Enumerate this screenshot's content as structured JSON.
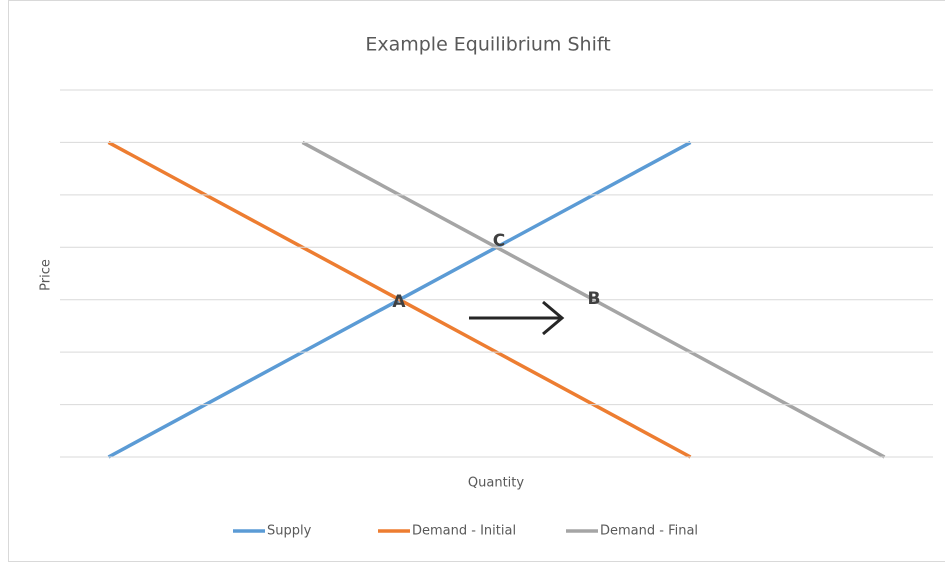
{
  "chart_data": {
    "type": "line",
    "title": "Example Equilibrium Shift",
    "x_label": "Quantity",
    "y_label": "Price",
    "categories": [
      null,
      null,
      null,
      null,
      null,
      null,
      null,
      null,
      null
    ],
    "series": [
      {
        "name": "Supply",
        "color": "#5b9bd5",
        "values": [
          0,
          1,
          2,
          3,
          4,
          5,
          6,
          null,
          null
        ]
      },
      {
        "name": "Demand - Initial",
        "color": "#ed7d31",
        "values": [
          6,
          5,
          4,
          3,
          2,
          1,
          0,
          null,
          null
        ]
      },
      {
        "name": "Demand - Final",
        "color": "#a5a5a5",
        "values": [
          null,
          null,
          6,
          5,
          4,
          3,
          2,
          1,
          0
        ]
      }
    ],
    "annotations": [
      "A",
      "B",
      "C"
    ],
    "ylim": [
      0,
      7
    ],
    "yticks": [
      0,
      1,
      2,
      3,
      4,
      5,
      6,
      7
    ],
    "grid": true,
    "legend": "bottom"
  }
}
